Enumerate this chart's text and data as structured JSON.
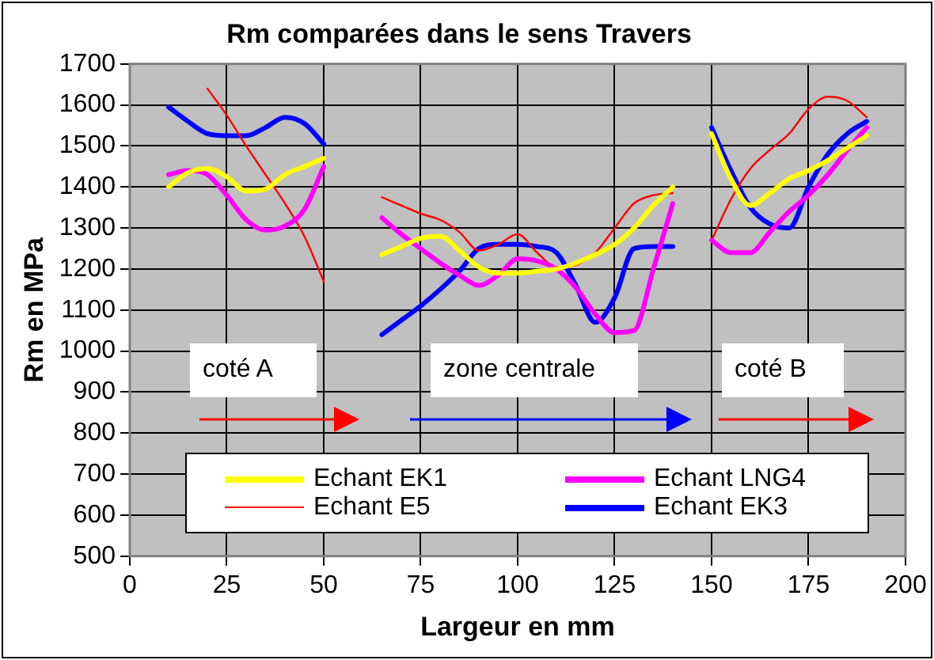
{
  "chart_data": {
    "type": "line",
    "title": "Rm comparées dans le sens Travers",
    "xlabel": "Largeur en mm",
    "ylabel": "Rm en MPa",
    "x": [
      10,
      15,
      20,
      25,
      30,
      35,
      40,
      45,
      50,
      57,
      65,
      70,
      75,
      80,
      85,
      90,
      95,
      100,
      105,
      110,
      115,
      120,
      125,
      130,
      135,
      140,
      145,
      150,
      155,
      160,
      165,
      170,
      175,
      180,
      185,
      190
    ],
    "series": [
      {
        "name": "Echant EK1",
        "color": "#ffff00",
        "values": [
          1400,
          1435,
          1445,
          1425,
          1390,
          1395,
          1430,
          1450,
          1470,
          null,
          1235,
          1255,
          1275,
          1280,
          1245,
          1205,
          1190,
          1190,
          1195,
          1200,
          1215,
          1235,
          1260,
          1300,
          1355,
          1400,
          null,
          1530,
          1420,
          1355,
          1385,
          1420,
          1440,
          1465,
          1495,
          1525
        ]
      },
      {
        "name": "Echant LNG4",
        "color": "#ff00ff",
        "values": [
          1430,
          1440,
          1430,
          1380,
          1320,
          1295,
          1305,
          1345,
          1450,
          null,
          1325,
          1285,
          1250,
          1215,
          1185,
          1160,
          1185,
          1225,
          1220,
          1200,
          1155,
          1090,
          1045,
          1050,
          1200,
          1360,
          null,
          1270,
          1240,
          1240,
          1290,
          1340,
          1380,
          1430,
          1490,
          1545
        ]
      },
      {
        "name": "Echant E5",
        "color": "#ff0000",
        "values": [
          null,
          null,
          1640,
          1575,
          1500,
          1430,
          1360,
          1280,
          1170,
          null,
          1375,
          1355,
          1335,
          1320,
          1290,
          1245,
          1260,
          1285,
          1240,
          1205,
          1210,
          1240,
          1300,
          1360,
          1380,
          1385,
          null,
          1270,
          1370,
          1445,
          1490,
          1530,
          1590,
          1620,
          1610,
          1570
        ]
      },
      {
        "name": "Echant EK3",
        "color": "#0000ff",
        "values": [
          1595,
          1560,
          1530,
          1525,
          1525,
          1545,
          1570,
          1555,
          1505,
          null,
          1040,
          1075,
          1110,
          1150,
          1195,
          1250,
          1260,
          1260,
          1255,
          1240,
          1160,
          1070,
          1130,
          1250,
          1255,
          1255,
          null,
          1545,
          1440,
          1350,
          1310,
          1300,
          1400,
          1480,
          1530,
          1560
        ]
      }
    ],
    "xlim": [
      0,
      200
    ],
    "xticks": [
      0,
      25,
      50,
      75,
      100,
      125,
      150,
      175,
      200
    ],
    "ylim": [
      500,
      1700
    ],
    "yticks": [
      500,
      600,
      700,
      800,
      900,
      1000,
      1100,
      1200,
      1300,
      1400,
      1500,
      1600,
      1700
    ],
    "grid": true,
    "legend": "bottom",
    "marker": "none",
    "line_style": "solid",
    "annotations": [
      "coté A",
      "zone centrale",
      "coté B"
    ]
  }
}
